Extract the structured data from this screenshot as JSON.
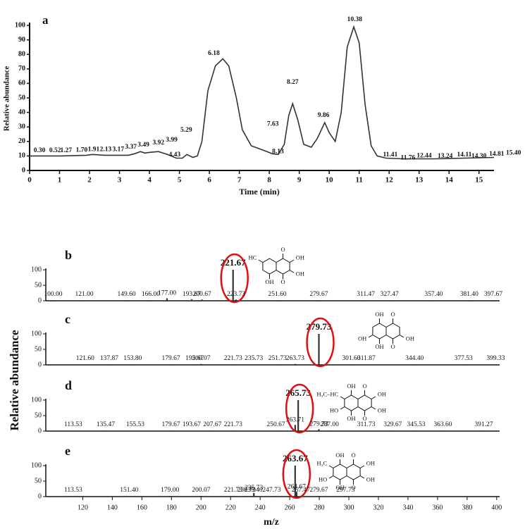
{
  "chart_data": [
    {
      "type": "line",
      "title": "a",
      "xlabel": "Time (min)",
      "ylabel": "Relative abundance",
      "color": "#333333",
      "x": [
        0,
        1,
        1.9,
        2.1,
        2.5,
        3.3,
        3.5,
        3.7,
        3.85,
        4.0,
        4.3,
        4.6,
        4.9,
        5.1,
        5.25,
        5.45,
        5.6,
        5.75,
        5.95,
        6.2,
        6.45,
        6.65,
        6.9,
        7.1,
        7.4,
        7.8,
        8.1,
        8.3,
        8.5,
        8.65,
        8.78,
        8.95,
        9.15,
        9.4,
        9.6,
        9.85,
        10.0,
        10.2,
        10.4,
        10.6,
        10.82,
        11.0,
        11.2,
        11.4,
        11.6,
        11.9,
        12.5,
        13.5,
        14.5,
        15.5
      ],
      "values": [
        10,
        10,
        10.5,
        11,
        10.5,
        10.5,
        11.5,
        13,
        12,
        12.5,
        13,
        11,
        8.5,
        8.5,
        11,
        9,
        10,
        20,
        55,
        72,
        77,
        72,
        50,
        28,
        17,
        14,
        11.5,
        11,
        18,
        38,
        46,
        35,
        18,
        16,
        22,
        33,
        26,
        20,
        40,
        85,
        99,
        88,
        45,
        17,
        10,
        8.5,
        8,
        8,
        8.5,
        9
      ],
      "xlim": [
        0,
        15.5
      ],
      "ylim": [
        0,
        100
      ],
      "xticks": [
        0,
        1,
        2,
        3,
        4,
        5,
        6,
        7,
        8,
        9,
        10,
        11,
        12,
        13,
        14,
        15
      ],
      "yticks": [
        0,
        10,
        20,
        30,
        40,
        50,
        60,
        70,
        80,
        90,
        100
      ],
      "annotations": [
        {
          "x": 0.33,
          "y": 13.6,
          "text": "0.30"
        },
        {
          "x": 0.85,
          "y": 13.6,
          "text": "0.52"
        },
        {
          "x": 1.22,
          "y": 13.6,
          "text": "1.27"
        },
        {
          "x": 1.74,
          "y": 14,
          "text": "1.70"
        },
        {
          "x": 2.14,
          "y": 14.5,
          "text": "1.91"
        },
        {
          "x": 2.54,
          "y": 14.5,
          "text": "2.13"
        },
        {
          "x": 2.96,
          "y": 14.5,
          "text": "3.17"
        },
        {
          "x": 3.38,
          "y": 16,
          "text": "3.37"
        },
        {
          "x": 3.8,
          "y": 17.5,
          "text": "3.49"
        },
        {
          "x": 4.3,
          "y": 19,
          "text": "3.92"
        },
        {
          "x": 4.74,
          "y": 21,
          "text": "3.99"
        },
        {
          "x": 4.84,
          "y": 10.7,
          "text": "4.43"
        },
        {
          "x": 5.23,
          "y": 27.7,
          "text": "5.29"
        },
        {
          "x": 6.15,
          "y": 80.6,
          "text": "6.18"
        },
        {
          "x": 8.12,
          "y": 32,
          "text": "7.63"
        },
        {
          "x": 8.29,
          "y": 13,
          "text": "8.13"
        },
        {
          "x": 8.78,
          "y": 60.7,
          "text": "8.27"
        },
        {
          "x": 9.81,
          "y": 38,
          "text": "9.86"
        },
        {
          "x": 10.85,
          "y": 104,
          "text": "10.38"
        },
        {
          "x": 12.04,
          "y": 10.7,
          "text": "11.41"
        },
        {
          "x": 12.63,
          "y": 8.7,
          "text": "11.76"
        },
        {
          "x": 13.17,
          "y": 10,
          "text": "12.44"
        },
        {
          "x": 13.87,
          "y": 9.7,
          "text": "13.24"
        },
        {
          "x": 14.51,
          "y": 10.7,
          "text": "14.11"
        },
        {
          "x": 15.0,
          "y": 9.7,
          "text": "14.30"
        },
        {
          "x": 15.59,
          "y": 11.2,
          "text": "14.81"
        },
        {
          "x": 16.15,
          "y": 12,
          "text": "15.40"
        }
      ]
    },
    {
      "type": "stick",
      "title": "b",
      "color": "#333333",
      "xlim": [
        95,
        402
      ],
      "ylim": [
        0,
        100
      ],
      "yticks": [
        0,
        50,
        100
      ],
      "x": [
        {
          "value": 100,
          "label": "100.00"
        },
        {
          "value": 121,
          "label": "121.00"
        },
        {
          "value": 149.6,
          "label": "149.60"
        },
        {
          "value": 166,
          "label": "166.00"
        },
        {
          "value": 177,
          "label": "177.00"
        },
        {
          "value": 193.67,
          "label": "193.67"
        },
        {
          "value": 200.67,
          "label": "200.67"
        },
        {
          "value": 221.67,
          "label": "221.67"
        },
        {
          "value": 223.73,
          "label": "223.73"
        },
        {
          "value": 251.6,
          "label": "251.60"
        },
        {
          "value": 279.67,
          "label": "279.67"
        },
        {
          "value": 311.47,
          "label": "311.47"
        },
        {
          "value": 327.47,
          "label": "327.47"
        },
        {
          "value": 357.4,
          "label": "357.40"
        },
        {
          "value": 381.4,
          "label": "381.40"
        },
        {
          "value": 397.67,
          "label": "397.67"
        }
      ],
      "values": [
        2,
        2,
        2,
        2,
        8,
        5,
        4,
        100,
        4,
        2,
        2,
        2,
        2,
        2,
        2,
        2
      ],
      "structure": [
        "HC",
        "O",
        "OH",
        "OH",
        "O",
        "OH"
      ]
    },
    {
      "type": "stick",
      "title": "c",
      "color": "#333333",
      "xlim": [
        95,
        402
      ],
      "ylim": [
        0,
        100
      ],
      "yticks": [
        0,
        50,
        100
      ],
      "x": [
        {
          "value": 121.6,
          "label": "121.60"
        },
        {
          "value": 137.87,
          "label": "137.87"
        },
        {
          "value": 153.8,
          "label": "153.80"
        },
        {
          "value": 179.67,
          "label": "179.67"
        },
        {
          "value": 195.67,
          "label": "195.67"
        },
        {
          "value": 200.07,
          "label": "200.07"
        },
        {
          "value": 221.73,
          "label": "221.73"
        },
        {
          "value": 235.73,
          "label": "235.73"
        },
        {
          "value": 251.73,
          "label": "251.73"
        },
        {
          "value": 263.73,
          "label": "263.73"
        },
        {
          "value": 279.73,
          "label": "279.73"
        },
        {
          "value": 301.6,
          "label": "301.60"
        },
        {
          "value": 311.87,
          "label": "311.87"
        },
        {
          "value": 344.4,
          "label": "344.40"
        },
        {
          "value": 377.53,
          "label": "377.53"
        },
        {
          "value": 399.33,
          "label": "399.33"
        }
      ],
      "values": [
        2,
        2,
        2,
        2,
        2,
        3,
        2,
        2,
        2,
        3,
        100,
        2,
        2,
        2,
        2,
        2
      ],
      "structure": [
        "OH",
        "O",
        "OH",
        "OH",
        "O",
        "OH"
      ]
    },
    {
      "type": "stick",
      "title": "d",
      "color": "#333333",
      "xlim": [
        95,
        402
      ],
      "ylim": [
        0,
        100
      ],
      "yticks": [
        0,
        50,
        100
      ],
      "x": [
        {
          "value": 113.53,
          "label": "113.53"
        },
        {
          "value": 135.47,
          "label": "135.47"
        },
        {
          "value": 155.53,
          "label": "155.53"
        },
        {
          "value": 179.67,
          "label": "179.67"
        },
        {
          "value": 193.67,
          "label": "193.67"
        },
        {
          "value": 207.67,
          "label": "207.67"
        },
        {
          "value": 221.73,
          "label": "221.73"
        },
        {
          "value": 250.67,
          "label": "250.67"
        },
        {
          "value": 263.71,
          "label": "263.71"
        },
        {
          "value": 265.73,
          "label": "265.73"
        },
        {
          "value": 279.73,
          "label": "279.73"
        },
        {
          "value": 287,
          "label": "287.00"
        },
        {
          "value": 311.73,
          "label": "311.73"
        },
        {
          "value": 329.67,
          "label": "329.67"
        },
        {
          "value": 345.53,
          "label": "345.53"
        },
        {
          "value": 363.6,
          "label": "363.60"
        },
        {
          "value": 391.27,
          "label": "391.27"
        }
      ],
      "values": [
        2,
        2,
        2,
        2,
        2,
        2,
        2,
        2,
        20,
        100,
        6,
        2,
        2,
        2,
        2,
        2,
        2
      ],
      "structure": [
        "H₃C–HC",
        "OH",
        "HO",
        "OH",
        "O",
        "OH",
        "OH",
        "O"
      ]
    },
    {
      "type": "stick",
      "title": "e",
      "color": "#333333",
      "xlim": [
        95,
        402
      ],
      "ylim": [
        0,
        100
      ],
      "yticks": [
        0,
        50,
        100
      ],
      "xticks": [
        120,
        140,
        160,
        180,
        200,
        220,
        240,
        260,
        280,
        300,
        320,
        340,
        360,
        380,
        400
      ],
      "x": [
        {
          "value": 113.53,
          "label": "113.53"
        },
        {
          "value": 151.4,
          "label": "151.40"
        },
        {
          "value": 179,
          "label": "179.00"
        },
        {
          "value": 200.07,
          "label": "200.07"
        },
        {
          "value": 221.73,
          "label": "221.73"
        },
        {
          "value": 235.73,
          "label": "235.73"
        },
        {
          "value": 247.73,
          "label": "247.73"
        },
        {
          "value": 263.67,
          "label": "263.67"
        },
        {
          "value": 264.67,
          "label": "264.67"
        },
        {
          "value": 279.67,
          "label": "279.67"
        },
        {
          "value": 230.73,
          "label": "230.73"
        },
        {
          "value": 235.4,
          "label": "235.40"
        },
        {
          "value": 267.47,
          "label": "267.47"
        },
        {
          "value": 297.73,
          "label": "297.73"
        }
      ],
      "values": [
        2,
        2,
        2,
        2,
        2,
        12,
        2,
        100,
        15,
        2,
        2,
        2,
        2,
        2
      ],
      "structure": [
        "H₃C",
        "OH",
        "HO",
        "OH",
        "O",
        "OH",
        "OH",
        "O"
      ]
    }
  ],
  "ylabel": "Relative abundance",
  "xlabel": "m/z"
}
